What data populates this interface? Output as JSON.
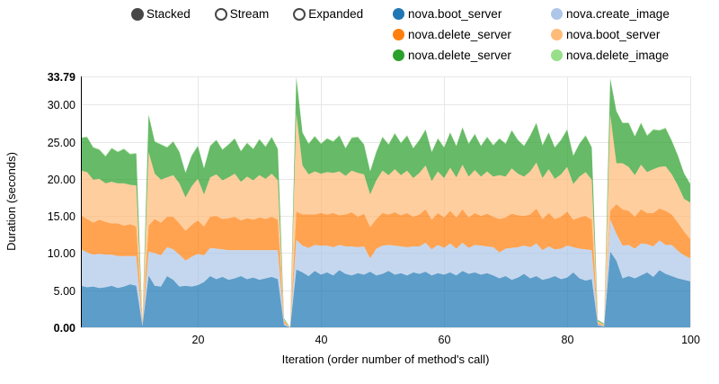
{
  "controls": {
    "options": [
      {
        "label": "Stacked",
        "selected": true
      },
      {
        "label": "Stream",
        "selected": false
      },
      {
        "label": "Expanded",
        "selected": false
      }
    ],
    "radio_color": "#474747"
  },
  "legend": {
    "items": [
      {
        "label": "nova.boot_server",
        "color": "#1f77b4"
      },
      {
        "label": "nova.create_image",
        "color": "#aec7e8"
      },
      {
        "label": "nova.delete_server",
        "color": "#ff7f0e"
      },
      {
        "label": "nova.boot_server",
        "color": "#ffbb78"
      },
      {
        "label": "nova.delete_server",
        "color": "#2ca02c"
      },
      {
        "label": "nova.delete_image",
        "color": "#98df8a"
      }
    ]
  },
  "chart_data": {
    "type": "area",
    "stacked": true,
    "title": "",
    "xlabel": "Iteration (order number of method's call)",
    "ylabel": "Duration (seconds)",
    "xlim": [
      1,
      100
    ],
    "ylim": [
      0,
      33.79
    ],
    "grid": true,
    "legend_position": "top-right",
    "x_ticks": [
      {
        "v": 20,
        "label": "20"
      },
      {
        "v": 40,
        "label": "40"
      },
      {
        "v": 60,
        "label": "60"
      },
      {
        "v": 80,
        "label": "80"
      },
      {
        "v": 100,
        "label": "100"
      }
    ],
    "y_ticks": [
      {
        "v": 0,
        "label": "0.00",
        "bold": true
      },
      {
        "v": 5,
        "label": "5.00",
        "bold": false
      },
      {
        "v": 10,
        "label": "10.00",
        "bold": false
      },
      {
        "v": 15,
        "label": "15.00",
        "bold": false
      },
      {
        "v": 20,
        "label": "20.00",
        "bold": false
      },
      {
        "v": 25,
        "label": "25.00",
        "bold": false
      },
      {
        "v": 30,
        "label": "30.00",
        "bold": false
      },
      {
        "v": 33.79,
        "label": "33.79",
        "bold": true
      }
    ],
    "fill_opacity": 0.72,
    "series": [
      {
        "name": "nova.boot_server",
        "color": "#1f77b4",
        "values": [
          5.6,
          5.4,
          5.5,
          5.3,
          5.4,
          5.6,
          5.3,
          5.5,
          5.8,
          5.6,
          0.2,
          7.0,
          5.6,
          5.5,
          6.9,
          6.4,
          5.5,
          5.6,
          5.5,
          5.7,
          6.1,
          6.9,
          6.5,
          6.8,
          6.4,
          6.6,
          6.9,
          6.5,
          6.7,
          6.4,
          6.6,
          6.8,
          6.5,
          0.3,
          0.0,
          7.8,
          7.4,
          6.9,
          7.6,
          7.1,
          7.4,
          7.0,
          7.7,
          7.2,
          7.0,
          7.3,
          7.1,
          7.5,
          7.0,
          7.2,
          7.6,
          7.1,
          7.3,
          7.0,
          7.4,
          7.2,
          7.5,
          7.0,
          7.3,
          7.1,
          7.4,
          7.0,
          7.6,
          7.2,
          7.4,
          7.1,
          7.3,
          7.0,
          6.6,
          6.9,
          6.4,
          6.7,
          7.2,
          6.6,
          6.9,
          6.4,
          6.6,
          6.9,
          6.5,
          6.7,
          7.4,
          6.6,
          6.3,
          6.5,
          0.3,
          0.1,
          10.2,
          9.0,
          6.6,
          6.9,
          6.6,
          7.0,
          7.4,
          6.8,
          7.7,
          7.2,
          6.9,
          6.6,
          6.4,
          6.2
        ]
      },
      {
        "name": "nova.create_image",
        "color": "#aec7e8",
        "values": [
          4.9,
          4.7,
          4.3,
          4.6,
          4.4,
          4.2,
          4.3,
          4.1,
          3.8,
          4.0,
          0.1,
          3.2,
          4.4,
          4.2,
          3.9,
          4.1,
          4.3,
          3.4,
          4.0,
          4.2,
          3.6,
          3.8,
          4.1,
          3.7,
          4.0,
          3.8,
          3.5,
          3.9,
          3.7,
          4.0,
          3.8,
          3.6,
          3.9,
          0.2,
          0.0,
          4.0,
          3.6,
          3.8,
          3.5,
          3.9,
          3.6,
          3.8,
          3.4,
          3.7,
          3.9,
          3.5,
          3.8,
          1.8,
          3.6,
          3.8,
          3.5,
          3.9,
          3.6,
          3.8,
          3.5,
          3.7,
          3.9,
          3.5,
          3.8,
          3.6,
          3.9,
          3.6,
          3.8,
          3.5,
          3.7,
          3.9,
          3.6,
          3.8,
          3.5,
          3.7,
          4.3,
          4.1,
          3.8,
          4.2,
          4.4,
          4.0,
          4.3,
          3.6,
          4.1,
          4.3,
          3.4,
          4.0,
          4.2,
          3.9,
          0.1,
          0.1,
          4.3,
          3.6,
          4.4,
          4.2,
          4.0,
          4.3,
          3.8,
          4.1,
          4.0,
          3.9,
          4.2,
          3.7,
          3.3,
          3.1
        ]
      },
      {
        "name": "nova.delete_server",
        "color": "#ff7f0e",
        "values": [
          4.6,
          4.5,
          4.3,
          4.6,
          4.4,
          4.2,
          4.4,
          4.1,
          4.3,
          4.0,
          0.2,
          3.5,
          4.6,
          4.4,
          4.1,
          4.4,
          4.2,
          4.0,
          4.3,
          4.5,
          3.9,
          4.2,
          4.4,
          4.1,
          4.3,
          4.5,
          4.0,
          4.3,
          4.1,
          4.4,
          4.2,
          4.5,
          4.1,
          0.3,
          0.0,
          3.8,
          4.2,
          4.5,
          4.1,
          4.4,
          4.2,
          4.6,
          4.0,
          4.3,
          4.6,
          4.1,
          4.4,
          4.2,
          4.0,
          4.4,
          4.1,
          4.5,
          4.2,
          4.6,
          4.0,
          4.3,
          4.5,
          4.0,
          4.3,
          4.1,
          4.4,
          4.2,
          4.5,
          4.1,
          4.3,
          4.0,
          4.4,
          4.1,
          4.5,
          4.2,
          4.6,
          4.3,
          4.0,
          4.4,
          4.7,
          4.2,
          4.5,
          4.1,
          4.3,
          4.6,
          3.7,
          4.2,
          4.5,
          4.1,
          0.2,
          0.1,
          1.2,
          4.0,
          4.9,
          4.6,
          4.3,
          4.6,
          4.2,
          4.5,
          4.3,
          4.6,
          4.1,
          3.8,
          3.2,
          2.6
        ]
      },
      {
        "name": "nova.boot_server",
        "color": "#ffbb78",
        "values": [
          6.0,
          6.3,
          5.8,
          5.5,
          5.2,
          5.6,
          5.4,
          5.7,
          5.3,
          5.5,
          0.1,
          9.9,
          6.1,
          5.8,
          5.3,
          5.6,
          5.4,
          4.5,
          5.2,
          5.6,
          4.3,
          5.3,
          5.6,
          5.2,
          5.5,
          5.8,
          5.2,
          5.6,
          5.3,
          5.7,
          5.4,
          5.8,
          5.3,
          0.2,
          0.0,
          13.2,
          6.6,
          5.4,
          5.8,
          5.3,
          5.7,
          5.4,
          5.9,
          5.2,
          5.6,
          5.9,
          5.3,
          4.4,
          5.2,
          5.7,
          5.3,
          5.8,
          5.4,
          5.7,
          5.2,
          5.6,
          5.9,
          5.2,
          5.6,
          5.3,
          5.8,
          5.4,
          6.0,
          5.5,
          5.8,
          5.3,
          5.7,
          5.4,
          5.9,
          5.5,
          6.1,
          5.6,
          5.3,
          5.8,
          6.2,
          5.5,
          5.9,
          5.4,
          5.7,
          6.0,
          4.8,
          5.5,
          5.9,
          5.4,
          0.2,
          0.1,
          13.0,
          5.5,
          6.2,
          5.9,
          5.6,
          6.0,
          5.5,
          5.9,
          5.6,
          6.0,
          5.4,
          5.0,
          4.4,
          4.9
        ]
      },
      {
        "name": "nova.delete_server",
        "color": "#2ca02c",
        "values": [
          4.4,
          4.7,
          4.3,
          3.9,
          3.6,
          4.5,
          4.2,
          4.6,
          4.1,
          4.3,
          0.1,
          5.0,
          4.3,
          4.7,
          4.0,
          4.5,
          4.2,
          3.3,
          4.1,
          4.4,
          3.5,
          4.2,
          4.6,
          4.1,
          4.4,
          4.7,
          4.1,
          4.5,
          4.2,
          4.8,
          4.3,
          4.9,
          4.2,
          0.2,
          0.0,
          4.9,
          4.4,
          4.1,
          4.7,
          4.0,
          4.5,
          4.2,
          4.8,
          3.7,
          4.4,
          4.8,
          4.0,
          3.1,
          3.8,
          4.5,
          4.1,
          4.8,
          4.3,
          4.7,
          4.0,
          4.4,
          4.8,
          3.9,
          4.4,
          4.1,
          4.7,
          4.2,
          5.0,
          4.4,
          4.8,
          4.1,
          4.6,
          4.2,
          4.9,
          4.4,
          5.1,
          4.5,
          4.1,
          4.8,
          5.3,
          4.4,
          4.9,
          4.2,
          4.6,
          5.0,
          3.8,
          4.4,
          4.9,
          4.3,
          0.2,
          0.1,
          4.8,
          7.0,
          5.4,
          5.9,
          5.2,
          5.6,
          4.9,
          5.3,
          4.9,
          5.1,
          4.5,
          4.0,
          3.4,
          2.5
        ]
      },
      {
        "name": "nova.delete_image",
        "color": "#98df8a",
        "values": [
          0.1,
          0.1,
          0.1,
          0.1,
          0.1,
          0.1,
          0.1,
          0.1,
          0.1,
          0.1,
          0.0,
          0.1,
          0.1,
          0.1,
          0.1,
          0.1,
          0.1,
          0.1,
          0.1,
          0.1,
          0.1,
          0.1,
          0.1,
          0.1,
          0.1,
          0.1,
          0.1,
          0.1,
          0.1,
          0.1,
          0.1,
          0.1,
          0.1,
          0.0,
          0.0,
          0.1,
          0.1,
          0.1,
          0.1,
          0.1,
          0.1,
          0.1,
          0.1,
          0.1,
          0.1,
          0.1,
          0.1,
          0.1,
          0.1,
          0.1,
          0.1,
          0.1,
          0.1,
          0.1,
          0.1,
          0.1,
          0.1,
          0.1,
          0.1,
          0.1,
          0.1,
          0.1,
          0.1,
          0.1,
          0.1,
          0.1,
          0.1,
          0.1,
          0.1,
          0.1,
          0.1,
          0.1,
          0.1,
          0.1,
          0.1,
          0.1,
          0.1,
          0.1,
          0.1,
          0.1,
          0.1,
          0.1,
          0.1,
          0.1,
          0.0,
          0.0,
          0.1,
          0.1,
          0.1,
          0.1,
          0.1,
          0.1,
          0.1,
          0.1,
          0.1,
          0.1,
          0.1,
          0.1,
          0.1,
          0.1
        ]
      }
    ]
  }
}
